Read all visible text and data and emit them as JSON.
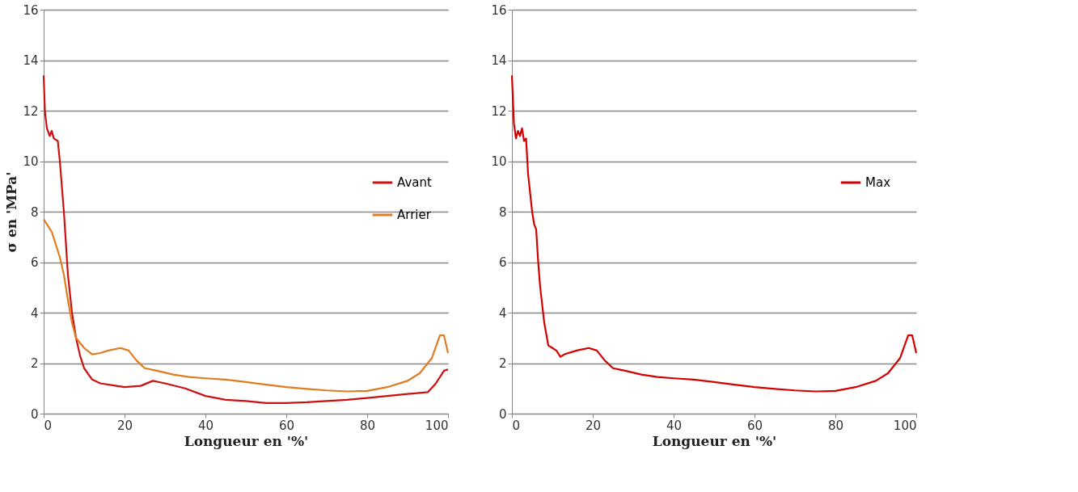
{
  "chart_data": [
    {
      "type": "line",
      "xlabel": "Longueur en '%'",
      "ylabel": "σ en 'MPa'",
      "xlim": [
        0,
        100
      ],
      "xticks": [
        0,
        20,
        40,
        60,
        80,
        100
      ],
      "ylim": [
        0,
        16
      ],
      "yticks": [
        0,
        2,
        4,
        6,
        8,
        10,
        12,
        14,
        16
      ],
      "grid": "y",
      "legend": "right",
      "marker": "none",
      "line_style": "solid",
      "series": [
        {
          "name": "Avant",
          "color": "#cc1010",
          "x": [
            0,
            0.3,
            0.8,
            1.5,
            2,
            2.5,
            3.5,
            4,
            5,
            6,
            7,
            8,
            9,
            10,
            12,
            14,
            18,
            20,
            24,
            27,
            30,
            35,
            40,
            45,
            50,
            55,
            60,
            65,
            70,
            75,
            80,
            85,
            90,
            95,
            97,
            99,
            100
          ],
          "values": [
            13.4,
            12,
            11.3,
            11.0,
            11.2,
            10.9,
            10.8,
            10,
            8,
            5.5,
            4,
            3,
            2.3,
            1.8,
            1.35,
            1.2,
            1.1,
            1.05,
            1.1,
            1.3,
            1.2,
            1.0,
            0.7,
            0.55,
            0.5,
            0.42,
            0.42,
            0.45,
            0.5,
            0.55,
            0.62,
            0.7,
            0.78,
            0.85,
            1.2,
            1.7,
            1.75
          ]
        },
        {
          "name": "Arrier",
          "color": "#e07b20",
          "x": [
            0,
            2,
            4,
            5,
            6,
            7,
            8,
            10,
            12,
            14,
            16,
            19,
            21,
            23,
            25,
            28,
            32,
            36,
            40,
            45,
            50,
            55,
            60,
            65,
            70,
            75,
            80,
            85,
            90,
            93,
            96,
            98,
            99,
            100
          ],
          "values": [
            7.7,
            7.2,
            6.2,
            5.5,
            4.5,
            3.6,
            3.0,
            2.6,
            2.35,
            2.4,
            2.5,
            2.6,
            2.5,
            2.1,
            1.8,
            1.7,
            1.55,
            1.45,
            1.4,
            1.35,
            1.25,
            1.15,
            1.05,
            0.98,
            0.92,
            0.88,
            0.9,
            1.05,
            1.3,
            1.6,
            2.2,
            3.1,
            3.1,
            2.4
          ]
        }
      ]
    },
    {
      "type": "line",
      "xlabel": "Longueur en '%'",
      "xlim": [
        0,
        100
      ],
      "xticks": [
        0,
        20,
        40,
        60,
        80,
        100
      ],
      "ylim": [
        0,
        16
      ],
      "yticks": [
        0,
        2,
        4,
        6,
        8,
        10,
        12,
        14,
        16
      ],
      "grid": "y",
      "legend": "right",
      "marker": "none",
      "line_style": "solid",
      "series": [
        {
          "name": "Max",
          "color": "#d40000",
          "x": [
            0,
            0.5,
            1,
            1.5,
            2,
            2.5,
            3,
            3.5,
            4,
            5,
            5.5,
            6,
            6.5,
            7,
            8,
            9,
            10,
            11,
            12,
            13,
            16,
            19,
            21,
            23,
            25,
            28,
            32,
            36,
            40,
            45,
            50,
            55,
            60,
            65,
            70,
            75,
            80,
            85,
            90,
            93,
            96,
            98,
            99,
            100
          ],
          "values": [
            13.4,
            11.5,
            10.9,
            11.2,
            11.0,
            11.3,
            10.8,
            10.9,
            9.5,
            8,
            7.5,
            7.3,
            6,
            5,
            3.6,
            2.7,
            2.6,
            2.5,
            2.25,
            2.35,
            2.5,
            2.6,
            2.5,
            2.1,
            1.8,
            1.7,
            1.55,
            1.45,
            1.4,
            1.35,
            1.25,
            1.15,
            1.05,
            0.98,
            0.92,
            0.88,
            0.9,
            1.05,
            1.3,
            1.6,
            2.2,
            3.1,
            3.1,
            2.4
          ]
        }
      ]
    }
  ]
}
